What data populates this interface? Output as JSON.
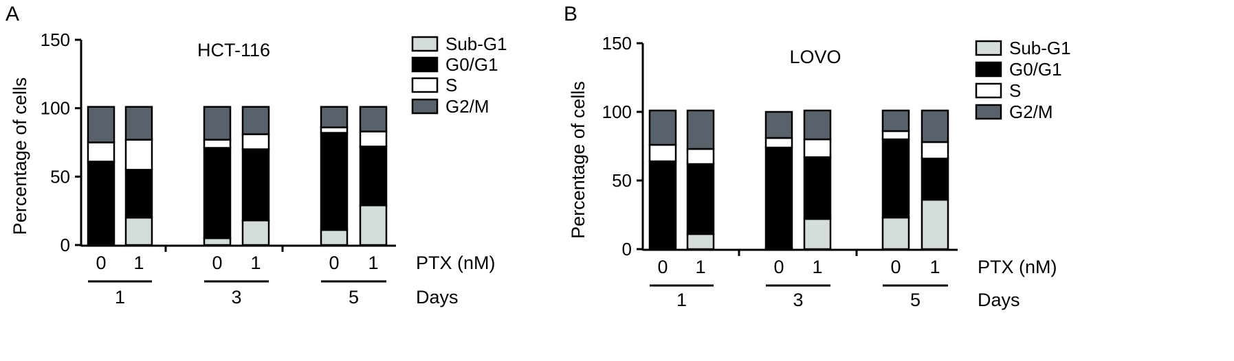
{
  "chart_data": [
    {
      "panel_label": "A",
      "type": "bar",
      "stacked": true,
      "title": "HCT-116",
      "ylabel": "Percentage of cells",
      "ylim": [
        0,
        150
      ],
      "yticks": [
        0,
        50,
        100,
        150
      ],
      "categories": [
        "0",
        "1",
        "0",
        "1",
        "0",
        "1"
      ],
      "days": [
        "1",
        "3",
        "5"
      ],
      "xlabel_ptx": "PTX (nM)",
      "xlabel_days": "Days",
      "legend_position": "right",
      "series": [
        {
          "name": "Sub-G1",
          "color": "#d5dcdc",
          "values": [
            0,
            20,
            5,
            18,
            11,
            29
          ]
        },
        {
          "name": "G0/G1",
          "color": "#000000",
          "values": [
            61,
            35,
            66,
            52,
            71,
            43
          ]
        },
        {
          "name": "S",
          "color": "#ffffff",
          "values": [
            14,
            22,
            6,
            11,
            4,
            11
          ]
        },
        {
          "name": "G2/M",
          "color": "#59626a",
          "values": [
            26,
            24,
            24,
            20,
            15,
            18
          ]
        }
      ]
    },
    {
      "panel_label": "B",
      "type": "bar",
      "stacked": true,
      "title": "LOVO",
      "ylabel": "Percentage of cells",
      "ylim": [
        0,
        150
      ],
      "yticks": [
        0,
        50,
        100,
        150
      ],
      "categories": [
        "0",
        "1",
        "0",
        "1",
        "0",
        "1"
      ],
      "days": [
        "1",
        "3",
        "5"
      ],
      "xlabel_ptx": "PTX (nM)",
      "xlabel_days": "Days",
      "legend_position": "right",
      "series": [
        {
          "name": "Sub-G1",
          "color": "#d5dcdc",
          "values": [
            0,
            11,
            1,
            22,
            23,
            36
          ]
        },
        {
          "name": "G0/G1",
          "color": "#000000",
          "values": [
            64,
            51,
            73,
            45,
            57,
            30
          ]
        },
        {
          "name": "S",
          "color": "#ffffff",
          "values": [
            12,
            11,
            7,
            13,
            6,
            12
          ]
        },
        {
          "name": "G2/M",
          "color": "#59626a",
          "values": [
            25,
            28,
            19,
            21,
            15,
            23
          ]
        }
      ]
    }
  ]
}
